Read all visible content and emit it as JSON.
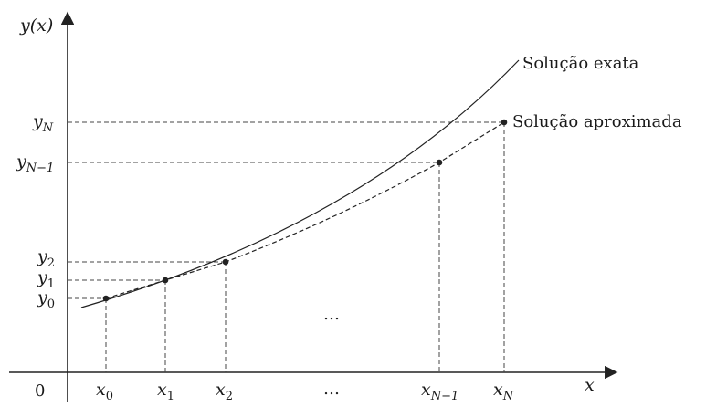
{
  "axes": {
    "y_label": "y(x)",
    "x_label": "x",
    "origin_label": "0"
  },
  "x_ticks": [
    {
      "base": "x",
      "sub": "0"
    },
    {
      "base": "x",
      "sub": "1"
    },
    {
      "base": "x",
      "sub": "2"
    },
    {
      "base": "…",
      "sub": ""
    },
    {
      "base": "x",
      "sub": "N−1"
    },
    {
      "base": "x",
      "sub": "N"
    }
  ],
  "y_ticks": [
    {
      "base": "y",
      "sub": "0"
    },
    {
      "base": "y",
      "sub": "1"
    },
    {
      "base": "y",
      "sub": "2"
    },
    {
      "base": "y",
      "sub": "N−1"
    },
    {
      "base": "y",
      "sub": "N"
    }
  ],
  "middle_ellipsis": "…",
  "series": {
    "exact_label": "Solução exata",
    "approx_label": "Solução aproximada"
  }
}
